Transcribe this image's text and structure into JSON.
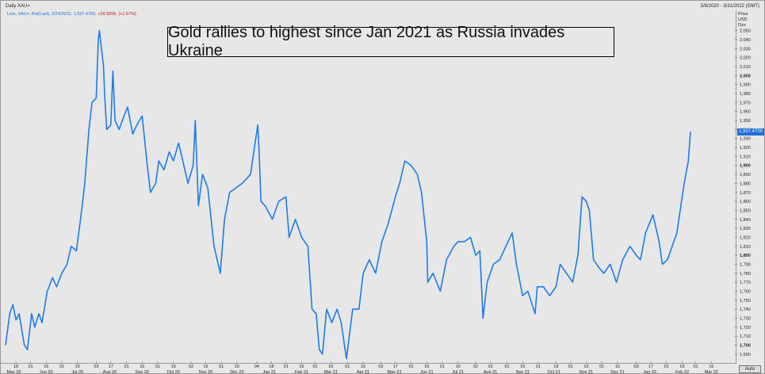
{
  "header": {
    "window_title": "Daily XAU=",
    "date_range": "5/8/2020 - 3/31/2022 (GMT)"
  },
  "legend": {
    "label": "Line, XAU=, Bid(Last), 2/24/2022, 1,937.4700,",
    "change": "+29.9206, (+1.57%)"
  },
  "price_axis_header": {
    "line1": "Price",
    "line2": "USD",
    "line3": "Ozs"
  },
  "last_price_badge": "1,937.4700",
  "auto_button": "Auto",
  "colors": {
    "line": "#1f7be8",
    "background": "#e7e7e7",
    "change": "#c0141a",
    "badge": "#1f6fd6"
  },
  "chart_data": {
    "type": "line",
    "title": "Gold rallies to highest since Jan 2021 as Russia invades Ukraine",
    "ylim": [
      1682,
      2062
    ],
    "yticks": [
      1690,
      1700,
      1710,
      1720,
      1730,
      1740,
      1750,
      1760,
      1770,
      1780,
      1790,
      1800,
      1810,
      1820,
      1830,
      1840,
      1850,
      1860,
      1870,
      1880,
      1890,
      1900,
      1910,
      1920,
      1930,
      1940,
      1950,
      1960,
      1970,
      1980,
      1990,
      2000,
      2010,
      2020,
      2030,
      2040,
      2050
    ],
    "ytick_labels": [
      "1,690",
      "1,700",
      "1,710",
      "1,720",
      "1,730",
      "1,740",
      "1,750",
      "1,760",
      "1,770",
      "1,780",
      "1,790",
      "1,800",
      "1,810",
      "1,820",
      "1,830",
      "1,840",
      "1,850",
      "1,860",
      "1,870",
      "1,880",
      "1,890",
      "1,900",
      "1,910",
      "1,920",
      "1,930",
      "1,940",
      "1,950",
      "1,960",
      "1,970",
      "1,980",
      "1,990",
      "2,000",
      "2,010",
      "2,020",
      "2,030",
      "2,040",
      "2,050"
    ],
    "bold_ticks": [
      "1,700",
      "1,800",
      "1,900",
      "2,000"
    ],
    "x_domain": [
      "2020-05-08",
      "2022-03-31"
    ],
    "xticks": [
      {
        "date": "2020-05-18",
        "label": "18"
      },
      {
        "date": "2020-06-01",
        "label": "01"
      },
      {
        "date": "2020-06-16",
        "label": "16"
      },
      {
        "date": "2020-07-01",
        "label": "01"
      },
      {
        "date": "2020-07-16",
        "label": "16"
      },
      {
        "date": "2020-08-03",
        "label": "03"
      },
      {
        "date": "2020-08-17",
        "label": "17"
      },
      {
        "date": "2020-09-01",
        "label": "01"
      },
      {
        "date": "2020-09-16",
        "label": "16"
      },
      {
        "date": "2020-10-01",
        "label": "01"
      },
      {
        "date": "2020-10-16",
        "label": "16"
      },
      {
        "date": "2020-11-02",
        "label": "02"
      },
      {
        "date": "2020-11-16",
        "label": "16"
      },
      {
        "date": "2020-12-01",
        "label": "01"
      },
      {
        "date": "2020-12-16",
        "label": "16"
      },
      {
        "date": "2021-01-04",
        "label": "04"
      },
      {
        "date": "2021-01-18",
        "label": "18"
      },
      {
        "date": "2021-02-01",
        "label": "01"
      },
      {
        "date": "2021-02-16",
        "label": "16"
      },
      {
        "date": "2021-03-01",
        "label": "01"
      },
      {
        "date": "2021-03-16",
        "label": "16"
      },
      {
        "date": "2021-04-01",
        "label": "01"
      },
      {
        "date": "2021-04-16",
        "label": "16"
      },
      {
        "date": "2021-05-03",
        "label": "03"
      },
      {
        "date": "2021-05-17",
        "label": "17"
      },
      {
        "date": "2021-06-01",
        "label": "01"
      },
      {
        "date": "2021-06-16",
        "label": "16"
      },
      {
        "date": "2021-07-01",
        "label": "01"
      },
      {
        "date": "2021-07-16",
        "label": "16"
      },
      {
        "date": "2021-08-02",
        "label": "02"
      },
      {
        "date": "2021-08-16",
        "label": "16"
      },
      {
        "date": "2021-09-01",
        "label": "01"
      },
      {
        "date": "2021-09-16",
        "label": "16"
      },
      {
        "date": "2021-10-01",
        "label": "01"
      },
      {
        "date": "2021-10-18",
        "label": "18"
      },
      {
        "date": "2021-11-01",
        "label": "01"
      },
      {
        "date": "2021-11-16",
        "label": "16"
      },
      {
        "date": "2021-12-01",
        "label": "01"
      },
      {
        "date": "2021-12-16",
        "label": "16"
      },
      {
        "date": "2022-01-03",
        "label": "03"
      },
      {
        "date": "2022-01-17",
        "label": "17"
      },
      {
        "date": "2022-02-01",
        "label": "01"
      },
      {
        "date": "2022-02-16",
        "label": "16"
      },
      {
        "date": "2022-03-01",
        "label": "01"
      },
      {
        "date": "2022-03-16",
        "label": "16"
      }
    ],
    "month_labels": [
      {
        "date": "2020-05-01",
        "label": "May 20"
      },
      {
        "date": "2020-06-01",
        "label": "Jun 20"
      },
      {
        "date": "2020-07-01",
        "label": "Jul 20"
      },
      {
        "date": "2020-08-01",
        "label": "Aug 20"
      },
      {
        "date": "2020-09-01",
        "label": "Sep 20"
      },
      {
        "date": "2020-10-01",
        "label": "Oct 20"
      },
      {
        "date": "2020-11-01",
        "label": "Nov 20"
      },
      {
        "date": "2020-12-01",
        "label": "Dec 20"
      },
      {
        "date": "2021-01-01",
        "label": "Jan 21"
      },
      {
        "date": "2021-02-01",
        "label": "Feb 21"
      },
      {
        "date": "2021-03-01",
        "label": "Mar 21"
      },
      {
        "date": "2021-04-01",
        "label": "Apr 21"
      },
      {
        "date": "2021-05-01",
        "label": "May 21"
      },
      {
        "date": "2021-06-01",
        "label": "Jun 21"
      },
      {
        "date": "2021-07-01",
        "label": "Jul 21"
      },
      {
        "date": "2021-08-01",
        "label": "Aug 21"
      },
      {
        "date": "2021-09-01",
        "label": "Sep 21"
      },
      {
        "date": "2021-10-01",
        "label": "Oct 21"
      },
      {
        "date": "2021-11-01",
        "label": "Nov 21"
      },
      {
        "date": "2021-12-01",
        "label": "Dec 21"
      },
      {
        "date": "2022-01-01",
        "label": "Jan 22"
      },
      {
        "date": "2022-02-01",
        "label": "Feb 22"
      },
      {
        "date": "2022-03-01",
        "label": "Mar 22"
      }
    ],
    "series": [
      {
        "x": [
          "2020-05-08",
          "2020-05-12",
          "2020-05-15",
          "2020-05-18",
          "2020-05-21",
          "2020-05-26",
          "2020-05-29",
          "2020-06-02",
          "2020-06-05",
          "2020-06-09",
          "2020-06-12",
          "2020-06-17",
          "2020-06-22",
          "2020-06-26",
          "2020-07-01",
          "2020-07-06",
          "2020-07-10",
          "2020-07-15",
          "2020-07-20",
          "2020-07-23",
          "2020-07-27",
          "2020-07-30",
          "2020-08-03",
          "2020-08-05",
          "2020-08-06",
          "2020-08-10",
          "2020-08-11",
          "2020-08-13",
          "2020-08-17",
          "2020-08-19",
          "2020-08-21",
          "2020-08-25",
          "2020-08-28",
          "2020-09-02",
          "2020-09-07",
          "2020-09-11",
          "2020-09-16",
          "2020-09-21",
          "2020-09-24",
          "2020-09-29",
          "2020-10-02",
          "2020-10-07",
          "2020-10-12",
          "2020-10-16",
          "2020-10-21",
          "2020-10-26",
          "2020-10-30",
          "2020-11-04",
          "2020-11-06",
          "2020-11-09",
          "2020-11-13",
          "2020-11-18",
          "2020-11-24",
          "2020-11-30",
          "2020-12-04",
          "2020-12-09",
          "2020-12-15",
          "2020-12-21",
          "2020-12-29",
          "2021-01-05",
          "2021-01-06",
          "2021-01-08",
          "2021-01-12",
          "2021-01-19",
          "2021-01-25",
          "2021-02-01",
          "2021-02-04",
          "2021-02-10",
          "2021-02-16",
          "2021-02-22",
          "2021-02-26",
          "2021-03-02",
          "2021-03-05",
          "2021-03-08",
          "2021-03-12",
          "2021-03-17",
          "2021-03-22",
          "2021-03-26",
          "2021-03-31",
          "2021-04-06",
          "2021-04-12",
          "2021-04-16",
          "2021-04-22",
          "2021-04-28",
          "2021-05-04",
          "2021-05-10",
          "2021-05-17",
          "2021-05-21",
          "2021-05-26",
          "2021-06-01",
          "2021-06-07",
          "2021-06-11",
          "2021-06-16",
          "2021-06-17",
          "2021-06-22",
          "2021-06-29",
          "2021-07-05",
          "2021-07-12",
          "2021-07-16",
          "2021-07-22",
          "2021-07-28",
          "2021-08-02",
          "2021-08-06",
          "2021-08-09",
          "2021-08-13",
          "2021-08-19",
          "2021-08-25",
          "2021-08-31",
          "2021-09-06",
          "2021-09-10",
          "2021-09-16",
          "2021-09-21",
          "2021-09-28",
          "2021-09-30",
          "2021-10-06",
          "2021-10-12",
          "2021-10-18",
          "2021-10-22",
          "2021-10-28",
          "2021-11-03",
          "2021-11-08",
          "2021-11-12",
          "2021-11-16",
          "2021-11-19",
          "2021-11-23",
          "2021-11-29",
          "2021-12-03",
          "2021-12-09",
          "2021-12-15",
          "2021-12-21",
          "2021-12-28",
          "2022-01-03",
          "2022-01-07",
          "2022-01-12",
          "2022-01-19",
          "2022-01-25",
          "2022-01-28",
          "2022-02-02",
          "2022-02-08",
          "2022-02-11",
          "2022-02-16",
          "2022-02-18",
          "2022-02-22",
          "2022-02-24"
        ],
        "y": [
          1700,
          1735,
          1745,
          1728,
          1735,
          1700,
          1695,
          1735,
          1720,
          1735,
          1725,
          1760,
          1775,
          1765,
          1780,
          1790,
          1810,
          1805,
          1850,
          1880,
          1940,
          1970,
          1975,
          2040,
          2050,
          2010,
          1980,
          1940,
          1945,
          2005,
          1950,
          1940,
          1950,
          1965,
          1935,
          1945,
          1955,
          1900,
          1870,
          1880,
          1905,
          1895,
          1915,
          1905,
          1925,
          1900,
          1880,
          1900,
          1950,
          1855,
          1890,
          1875,
          1810,
          1780,
          1840,
          1870,
          1875,
          1880,
          1890,
          1945,
          1920,
          1860,
          1855,
          1840,
          1860,
          1865,
          1820,
          1840,
          1820,
          1810,
          1740,
          1735,
          1695,
          1690,
          1740,
          1725,
          1740,
          1725,
          1685,
          1740,
          1740,
          1780,
          1795,
          1780,
          1815,
          1835,
          1865,
          1880,
          1905,
          1900,
          1890,
          1870,
          1815,
          1770,
          1780,
          1760,
          1795,
          1810,
          1815,
          1815,
          1820,
          1800,
          1805,
          1730,
          1770,
          1790,
          1795,
          1810,
          1825,
          1790,
          1755,
          1760,
          1735,
          1765,
          1765,
          1755,
          1765,
          1790,
          1780,
          1770,
          1800,
          1865,
          1860,
          1850,
          1795,
          1785,
          1780,
          1790,
          1770,
          1795,
          1810,
          1800,
          1795,
          1825,
          1845,
          1815,
          1790,
          1795,
          1815,
          1825,
          1865,
          1880,
          1905,
          1937.47
        ]
      }
    ]
  }
}
